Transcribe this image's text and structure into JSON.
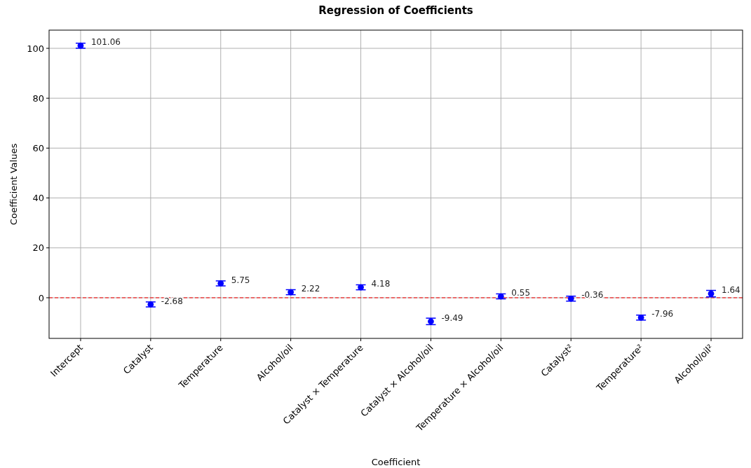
{
  "chart_data": {
    "type": "scatter",
    "title": "Regression of Coefficients",
    "xlabel": "Coefficient",
    "ylabel": "Coefficient Values",
    "categories": [
      "Intercept",
      "Catalyst",
      "Temperature",
      "Alcohol/oil",
      "Catalyst × Temperature",
      "Catalyst × Alcohol/oil",
      "Temperature × Alcohol/oil",
      "Catalyst²",
      "Temperature²",
      "Alcohol/oil²"
    ],
    "values": [
      101.06,
      -2.68,
      5.75,
      2.22,
      4.18,
      -9.49,
      0.55,
      -0.36,
      -7.96,
      1.64
    ],
    "errors": [
      1,
      1,
      1,
      1,
      1,
      1.3,
      1,
      1,
      1,
      1.3
    ],
    "color": "#0000ff",
    "marker": "circle",
    "data_labels": true,
    "ylim": [
      -16.3,
      107.3
    ],
    "yticks": [
      0,
      20,
      40,
      60,
      80,
      100
    ],
    "grid": true,
    "ref_lines": [
      {
        "axis": "y",
        "value": 0,
        "color": "#ff0000",
        "line_style": "dashed"
      }
    ]
  }
}
